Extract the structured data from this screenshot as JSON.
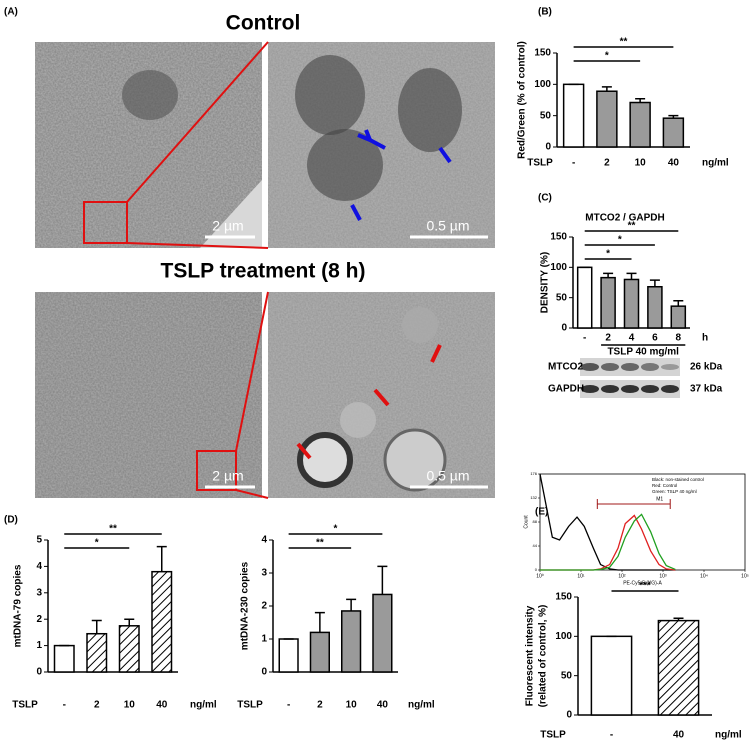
{
  "panels": [
    "(A)",
    "(B)",
    "(C)",
    "(D)",
    "(E)"
  ],
  "images": {
    "control_title": "Control",
    "tslp_title": "TSLP treatment (8 h)",
    "scale_labels": [
      "2 µm",
      "0.5 µm",
      "2 µm",
      "0.5 µm"
    ]
  },
  "blot": {
    "rows": [
      {
        "label": "MTCO2",
        "size": "26 kDa"
      },
      {
        "label": "GAPDH",
        "size": "37 kDa"
      }
    ]
  },
  "chart_data": [
    {
      "type": "bar",
      "categories": [
        "-",
        "2",
        "10",
        "40"
      ],
      "values": [
        100,
        89,
        71,
        46
      ],
      "errors": [
        0,
        7,
        6,
        4
      ],
      "bar_fills": [
        "#ffffff",
        "#9a9a9a",
        "#9a9a9a",
        "#9a9a9a"
      ],
      "ylim": [
        0,
        150
      ],
      "yticks": [
        0,
        50,
        100,
        150
      ],
      "ylabel": "Red/Green (% of control)",
      "x_prefix": "TSLP",
      "x_unit": "ng/ml",
      "significance": [
        {
          "from": "-",
          "to": "40",
          "label": "**"
        },
        {
          "from": "-",
          "to": "10",
          "label": "*"
        }
      ]
    },
    {
      "type": "bar",
      "title": "MTCO2 / GAPDH",
      "categories": [
        "-",
        "2",
        "4",
        "6",
        "8"
      ],
      "values": [
        100,
        83,
        80,
        68,
        36
      ],
      "errors": [
        0,
        7,
        10,
        11,
        9
      ],
      "bar_fills": [
        "#ffffff",
        "#9a9a9a",
        "#9a9a9a",
        "#9a9a9a",
        "#9a9a9a"
      ],
      "ylim": [
        0,
        150
      ],
      "yticks": [
        0,
        50,
        100,
        150
      ],
      "ylabel": "DENSITY (%)",
      "x_unit": "h",
      "x_group": "TSLP 40 mg/ml",
      "significance": [
        {
          "from": "-",
          "to": "8",
          "label": "**"
        },
        {
          "from": "-",
          "to": "6",
          "label": "*"
        },
        {
          "from": "-",
          "to": "4",
          "label": "*"
        }
      ]
    },
    {
      "type": "bar",
      "categories": [
        "-",
        "2",
        "10",
        "40"
      ],
      "values": [
        1,
        1.45,
        1.75,
        3.8
      ],
      "errors": [
        0,
        0.5,
        0.25,
        0.95
      ],
      "bar_fills": [
        "#ffffff",
        "hatch",
        "hatch",
        "hatch"
      ],
      "ylim": [
        0,
        5
      ],
      "yticks": [
        0,
        1,
        2,
        3,
        4,
        5
      ],
      "ylabel": "mtDNA-79 copies",
      "x_prefix": "TSLP",
      "x_unit": "ng/ml",
      "significance": [
        {
          "from": "-",
          "to": "40",
          "label": "**"
        },
        {
          "from": "-",
          "to": "10",
          "label": "*"
        }
      ]
    },
    {
      "type": "bar",
      "categories": [
        "-",
        "2",
        "10",
        "40"
      ],
      "values": [
        1,
        1.2,
        1.85,
        2.35
      ],
      "errors": [
        0,
        0.6,
        0.35,
        0.85
      ],
      "bar_fills": [
        "#ffffff",
        "#9a9a9a",
        "#9a9a9a",
        "#9a9a9a"
      ],
      "ylim": [
        0,
        4
      ],
      "yticks": [
        0,
        1,
        2,
        3,
        4
      ],
      "ylabel": "mtDNA-230 copies",
      "x_prefix": "TSLP",
      "x_unit": "ng/ml",
      "significance": [
        {
          "from": "-",
          "to": "40",
          "label": "*"
        },
        {
          "from": "-",
          "to": "10",
          "label": "**"
        }
      ]
    },
    {
      "type": "line",
      "xlabel": "PE-Cy5-5 (YG)-A",
      "ylabel": "Count",
      "log_x": true,
      "xlim": [
        1,
        100000
      ],
      "xticks": [
        {
          "value": 1,
          "label": "10⁰"
        },
        {
          "value": 10,
          "label": "10¹"
        },
        {
          "value": 100,
          "label": "10²"
        },
        {
          "value": 1000,
          "label": "10³"
        },
        {
          "value": 10000,
          "label": "10⁴"
        },
        {
          "value": 100000,
          "label": "10⁵"
        }
      ],
      "ylim": [
        0,
        176
      ],
      "yticks": [
        0,
        44,
        88,
        132,
        176
      ],
      "x": [
        1,
        2,
        3,
        5,
        8,
        12,
        20,
        30,
        50,
        80,
        120,
        200,
        300,
        500,
        800,
        1200,
        2000
      ],
      "series": [
        {
          "name": "Black: non-stained control",
          "color": "#000000",
          "values": [
            176,
            60,
            55,
            80,
            97,
            80,
            40,
            10,
            2,
            0,
            0,
            0,
            0,
            0,
            0,
            0,
            0
          ]
        },
        {
          "name": "Red: Control",
          "color": "#e02020",
          "values": [
            0,
            0,
            0,
            0,
            0,
            0,
            0,
            2,
            10,
            40,
            85,
            100,
            75,
            35,
            10,
            2,
            0
          ]
        },
        {
          "name": "Green: TSLP 40 ng/ml",
          "color": "#20a020",
          "values": [
            0,
            0,
            0,
            0,
            0,
            0,
            0,
            1,
            5,
            25,
            60,
            90,
            102,
            70,
            30,
            8,
            1
          ]
        }
      ],
      "gate": {
        "label": "M1",
        "range": [
          25,
          1500
        ]
      }
    },
    {
      "type": "bar",
      "categories": [
        "-",
        "40"
      ],
      "values": [
        100,
        120
      ],
      "errors": [
        0,
        3
      ],
      "bar_fills": [
        "#ffffff",
        "hatch"
      ],
      "ylim": [
        0,
        150
      ],
      "yticks": [
        0,
        50,
        100,
        150
      ],
      "ylabel": [
        "Fluorescent intensity",
        "(related of control, %)"
      ],
      "x_prefix": "TSLP",
      "x_unit": "ng/ml",
      "significance": [
        {
          "from": "-",
          "to": "40",
          "label": "***"
        }
      ]
    }
  ]
}
